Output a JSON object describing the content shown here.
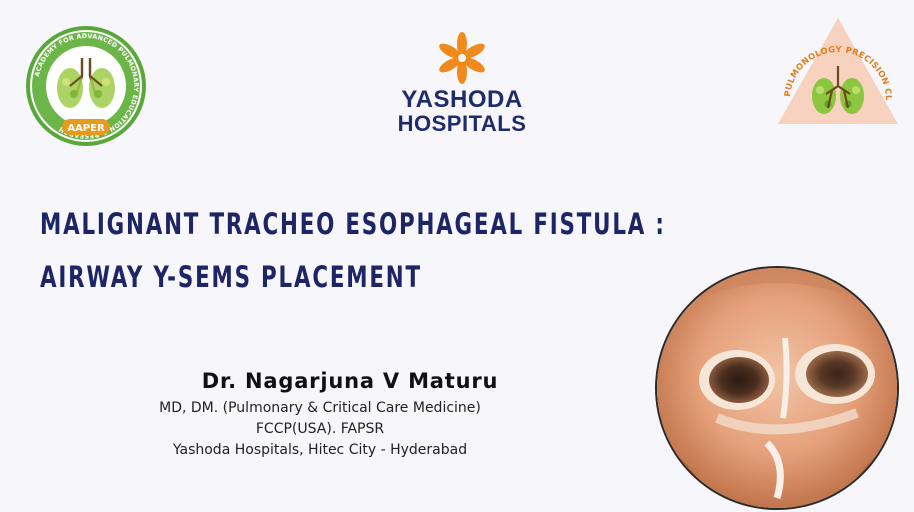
{
  "logos": {
    "aaper": {
      "ring_text": "ACADEMY FOR ADVANCED PULMONARY EDUCATION & RESEARCH",
      "badge": "AAPER",
      "ring_color": "#5aa83a",
      "badge_color": "#e89a1e"
    },
    "yashoda": {
      "line1": "YASHODA",
      "line2": "HOSPITALS",
      "flower_color": "#f08a1c",
      "text_color": "#1f2c6b"
    },
    "ppc": {
      "arc_text": "PULMONOLOGY PRECISION CLINICS",
      "triangle_color": "#f6d2bf",
      "text_color": "#e57d1c"
    }
  },
  "title": {
    "line1": "MALIGNANT TRACHEO ESOPHAGEAL FISTULA :",
    "line2": "AIRWAY Y-SEMS PLACEMENT"
  },
  "author": {
    "name": "Dr. Nagarjuna V Maturu",
    "credentials": [
      "MD, DM. (Pulmonary & Critical Care Medicine)",
      "FCCP(USA). FAPSR",
      "Yashoda Hospitals, Hitec City - Hyderabad"
    ]
  },
  "colors": {
    "background": "#f7f6fa",
    "title": "#1e2565"
  }
}
